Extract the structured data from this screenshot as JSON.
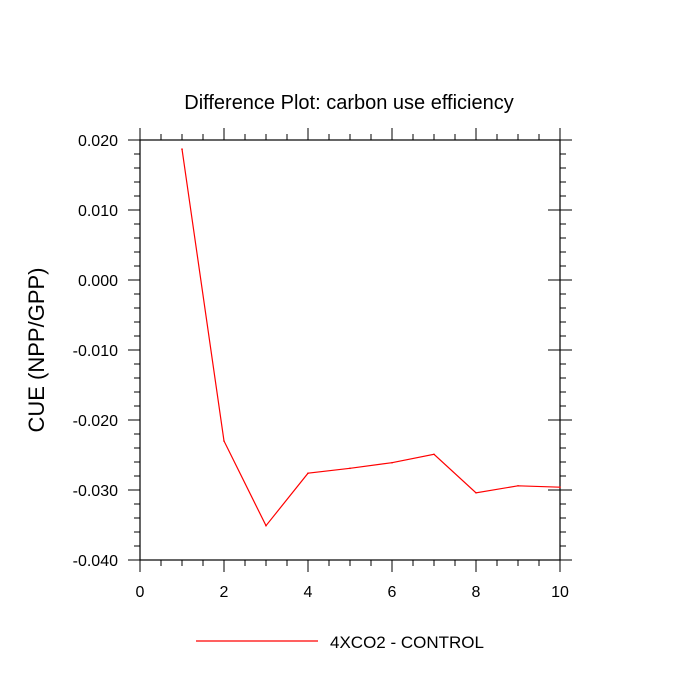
{
  "chart_data": {
    "type": "line",
    "title": "Difference Plot: carbon use efficiency",
    "xlabel": "",
    "ylabel": "CUE  (NPP/GPP)",
    "xlim": [
      0,
      10
    ],
    "ylim": [
      -0.04,
      0.02
    ],
    "x_ticks": [
      0,
      2,
      4,
      6,
      8,
      10
    ],
    "x_tick_labels": [
      "0",
      "2",
      "4",
      "6",
      "8",
      "10"
    ],
    "y_ticks": [
      0.02,
      0.01,
      0.0,
      -0.01,
      -0.02,
      -0.03,
      -0.04
    ],
    "y_tick_labels": [
      "0.020",
      "0.010",
      "0.000",
      "-0.010",
      "-0.020",
      "-0.030",
      "-0.040"
    ],
    "grid": false,
    "legend_position": "bottom",
    "series": [
      {
        "name": "4XCO2 - CONTROL",
        "color": "#ff0000",
        "x": [
          1,
          2,
          3,
          4,
          5,
          6,
          7,
          8,
          9,
          10
        ],
        "values": [
          0.0187,
          -0.023,
          -0.0351,
          -0.0276,
          -0.0269,
          -0.0261,
          -0.0249,
          -0.0304,
          -0.0294,
          -0.0296
        ]
      }
    ]
  }
}
